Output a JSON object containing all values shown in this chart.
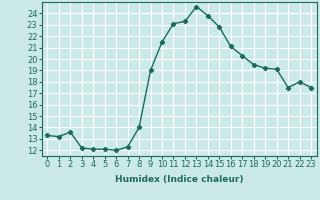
{
  "x": [
    0,
    1,
    2,
    3,
    4,
    5,
    6,
    7,
    8,
    9,
    10,
    11,
    12,
    13,
    14,
    15,
    16,
    17,
    18,
    19,
    20,
    21,
    22,
    23
  ],
  "y": [
    13.3,
    13.2,
    13.6,
    12.2,
    12.1,
    12.1,
    12.0,
    12.3,
    14.0,
    19.0,
    21.5,
    23.1,
    23.3,
    24.6,
    23.8,
    22.8,
    21.1,
    20.3,
    19.5,
    19.2,
    19.1,
    17.5,
    18.0,
    17.5
  ],
  "line_color": "#1a6b5a",
  "marker": "D",
  "marker_size": 2.2,
  "bg_color": "#cce9e9",
  "grid_color": "#ffffff",
  "xlabel": "Humidex (Indice chaleur)",
  "yticks": [
    12,
    13,
    14,
    15,
    16,
    17,
    18,
    19,
    20,
    21,
    22,
    23,
    24
  ],
  "ylim": [
    11.5,
    25.0
  ],
  "xlim": [
    -0.5,
    23.5
  ],
  "xticks": [
    0,
    1,
    2,
    3,
    4,
    5,
    6,
    7,
    8,
    9,
    10,
    11,
    12,
    13,
    14,
    15,
    16,
    17,
    18,
    19,
    20,
    21,
    22,
    23
  ],
  "tick_fontsize": 6.0,
  "xlabel_fontsize": 6.5,
  "linewidth": 1.0
}
